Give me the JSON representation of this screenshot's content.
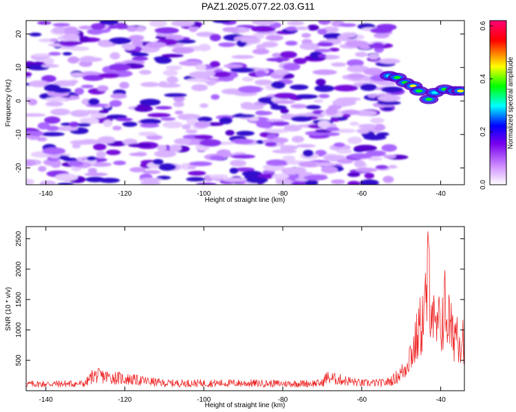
{
  "title": "PAZ1.2025.077.22.03.G11",
  "chart_data": [
    {
      "type": "heatmap",
      "xlabel": "Height of straight line (km)",
      "ylabel": "Frequency (Hz)",
      "xlim": [
        -145,
        -34
      ],
      "ylim": [
        -25,
        24
      ],
      "xticks": [
        -140,
        -120,
        -100,
        -80,
        -60,
        -40
      ],
      "yticks": [
        -20,
        -10,
        0,
        10,
        20
      ],
      "grid": false,
      "colorbar": {
        "label": "Normalized spectral amplitude",
        "range": [
          0.0,
          0.62
        ],
        "ticks": [
          "0.0",
          "0.2",
          "0.4",
          "0.6"
        ],
        "colors": [
          "#ffffff",
          "#cc88ff",
          "#7700ee",
          "#0000ff",
          "#00ffff",
          "#00ff00",
          "#ffff00",
          "#ff0000",
          "#ff0077"
        ]
      },
      "noise_region": {
        "x_range": [
          -145,
          -51
        ],
        "y_range": [
          -25,
          24
        ],
        "typical_amplitude": 0.1
      },
      "signal_points": [
        {
          "x": -53,
          "y": 7.5,
          "amplitude": 0.3
        },
        {
          "x": -51,
          "y": 7.0,
          "amplitude": 0.35
        },
        {
          "x": -49,
          "y": 5.5,
          "amplitude": 0.4
        },
        {
          "x": -47,
          "y": 4.5,
          "amplitude": 0.45
        },
        {
          "x": -45.5,
          "y": 3.0,
          "amplitude": 0.4
        },
        {
          "x": -43,
          "y": 0.5,
          "amplitude": 0.4
        },
        {
          "x": -41.5,
          "y": 2.5,
          "amplitude": 0.3
        },
        {
          "x": -39,
          "y": 3.5,
          "amplitude": 0.35
        },
        {
          "x": -36.5,
          "y": 3.0,
          "amplitude": 0.55
        },
        {
          "x": -35,
          "y": 3.0,
          "amplitude": 0.45
        }
      ]
    },
    {
      "type": "line",
      "xlabel": "Height of straight line (km)",
      "ylabel": "SNR (10 * v/v)",
      "xlim": [
        -145,
        -34
      ],
      "ylim": [
        0,
        2700
      ],
      "xticks": [
        -140,
        -120,
        -100,
        -80,
        -60,
        -40
      ],
      "yticks": [
        500,
        1000,
        1500,
        2000,
        2500
      ],
      "grid": false,
      "color": "#ee2222",
      "series": [
        {
          "x": [
            -145,
            -130,
            -128,
            -110,
            -90,
            -80,
            -70,
            -69,
            -60,
            -54,
            -52,
            -50,
            -49,
            -48,
            -47,
            -46,
            -45,
            -44,
            -43,
            -42.5,
            -42,
            -41.5,
            -41,
            -40,
            -39,
            -38,
            -37,
            -36,
            -35,
            -34
          ],
          "y": [
            150,
            160,
            350,
            170,
            170,
            160,
            170,
            300,
            170,
            180,
            250,
            400,
            500,
            800,
            900,
            1200,
            1500,
            1800,
            2700,
            2300,
            1900,
            1200,
            1400,
            1500,
            1900,
            1600,
            1200,
            1450,
            1200,
            1250
          ]
        }
      ]
    }
  ]
}
